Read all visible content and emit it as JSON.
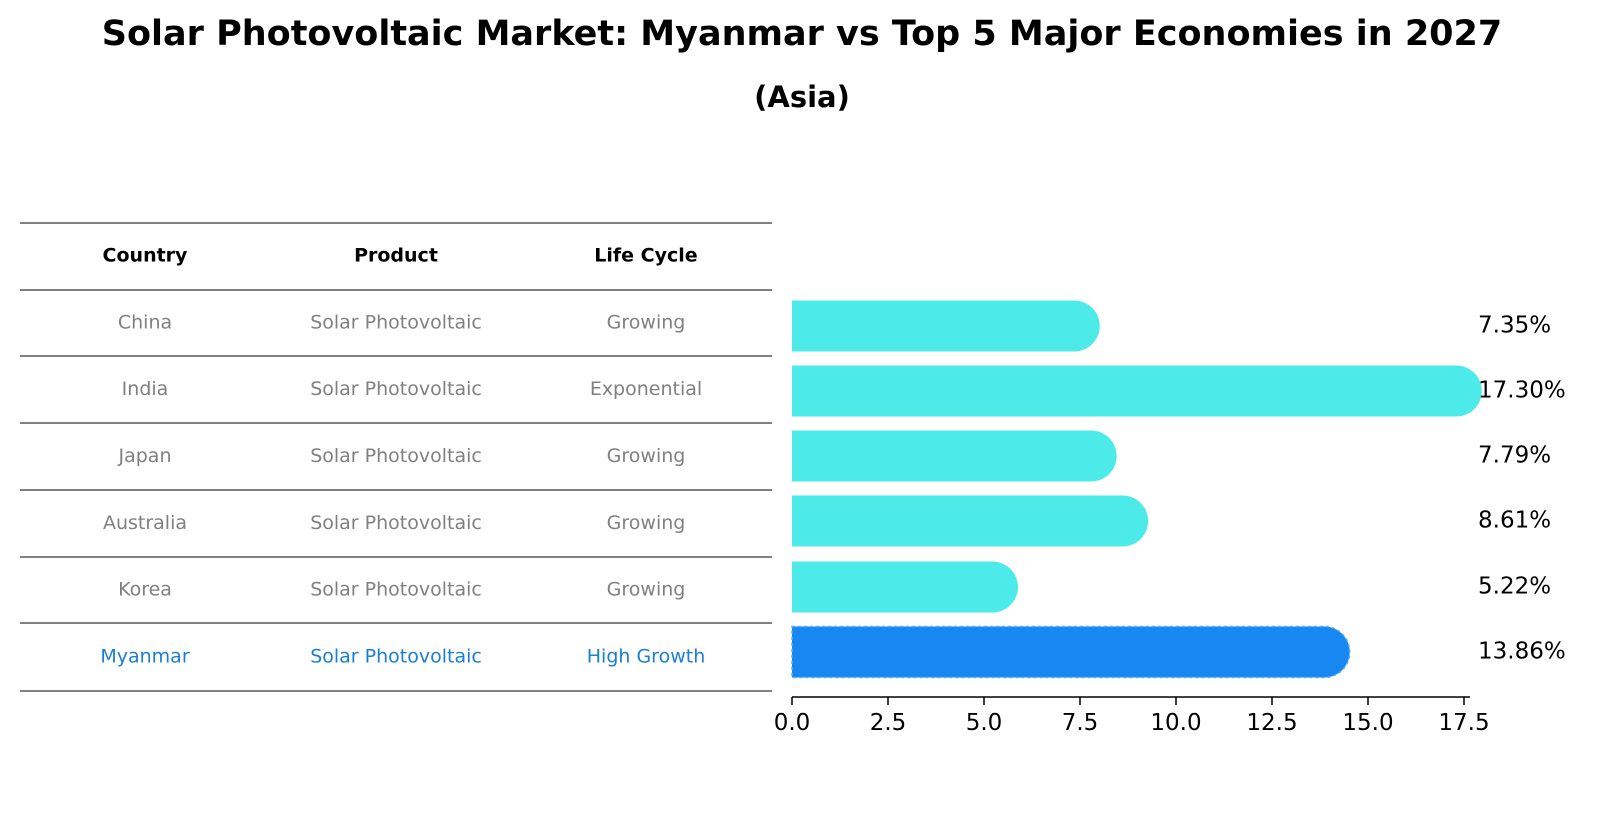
{
  "title": "Solar Photovoltaic Market: Myanmar vs Top 5 Major Economies in 2027",
  "subtitle": "(Asia)",
  "colors": {
    "regular": "#4deaea",
    "highlight": "#1787f2",
    "regular_text": "#808080",
    "highlight_text": "#1a7fd4"
  },
  "table": {
    "headers": [
      "Country",
      "Product",
      "Life Cycle"
    ],
    "rows": [
      [
        "China",
        "Solar Photovoltaic",
        "Growing"
      ],
      [
        "India",
        "Solar Photovoltaic",
        "Exponential"
      ],
      [
        "Japan",
        "Solar Photovoltaic",
        "Growing"
      ],
      [
        "Australia",
        "Solar Photovoltaic",
        "Growing"
      ],
      [
        "Korea",
        "Solar Photovoltaic",
        "Growing"
      ],
      [
        "Myanmar",
        "Solar Photovoltaic",
        "High Growth"
      ]
    ]
  },
  "chart_data": {
    "type": "bar",
    "orientation": "horizontal",
    "categories": [
      "China",
      "India",
      "Japan",
      "Australia",
      "Korea",
      "Myanmar"
    ],
    "values": [
      7.35,
      17.3,
      7.79,
      8.61,
      5.22,
      13.86
    ],
    "value_labels": [
      "7.35%",
      "17.30%",
      "7.79%",
      "8.61%",
      "5.22%",
      "13.86%"
    ],
    "highlight": "Myanmar",
    "xlim": [
      0,
      18.2
    ],
    "xticks": [
      0,
      2.5,
      5,
      7.5,
      10,
      12.5,
      15,
      17.5
    ],
    "xtick_labels": [
      "0.0",
      "2.5",
      "5.0",
      "7.5",
      "10.0",
      "12.5",
      "15.0",
      "17.5"
    ],
    "grid": false
  }
}
